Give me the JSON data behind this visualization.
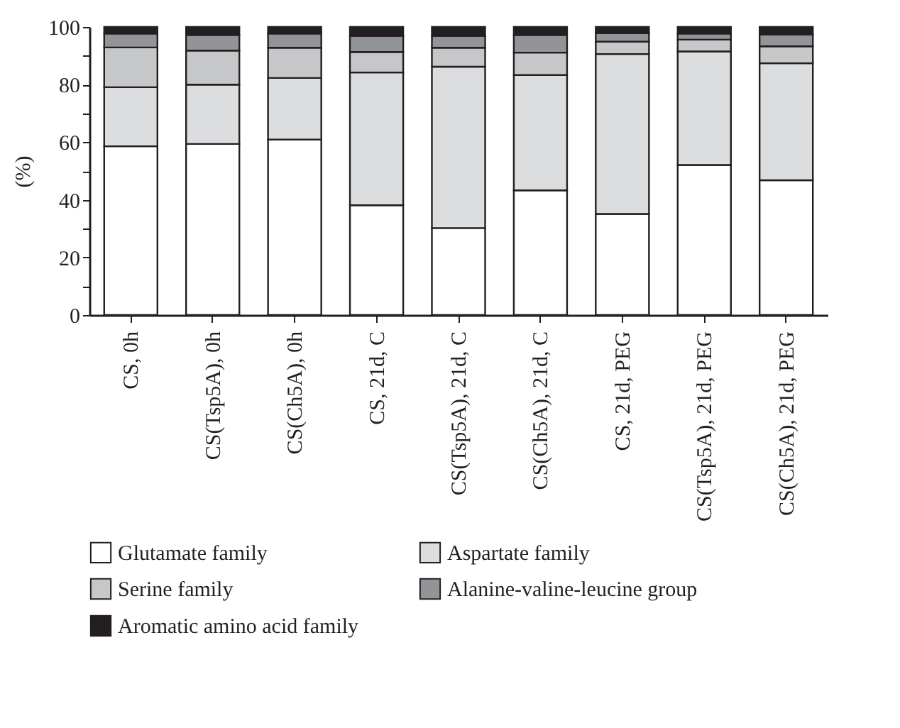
{
  "chart_data": {
    "type": "bar",
    "stacked": true,
    "ylabel": "(%)",
    "categories": [
      "CS, 0h",
      "CS(Tsp5A), 0h",
      "CS(Ch5A), 0h",
      "CS, 21d, C",
      "CS(Tsp5A), 21d, C",
      "CS(Ch5A), 21d, C",
      "CS, 21d, PEG",
      "CS(Tsp5A), 21d, PEG",
      "CS(Ch5A), 21d, PEG"
    ],
    "series": [
      {
        "name": "Glutamate family",
        "color": "#ffffff",
        "values": [
          58.6,
          59.4,
          60.9,
          38.1,
          30.2,
          43.3,
          35.1,
          52.1,
          46.8
        ]
      },
      {
        "name": "Aspartate family",
        "color": "#dcdddf",
        "values": [
          20.5,
          20.6,
          21.4,
          46.1,
          56.0,
          40.0,
          55.5,
          39.4,
          40.6
        ]
      },
      {
        "name": "Serine family",
        "color": "#c6c7c9",
        "values": [
          13.8,
          11.8,
          10.5,
          7.1,
          6.6,
          7.8,
          4.3,
          4.1,
          5.9
        ]
      },
      {
        "name": "Alanine-valine-leucine group",
        "color": "#929497",
        "values": [
          4.8,
          5.4,
          4.9,
          5.6,
          4.1,
          6.1,
          3.0,
          2.1,
          4.1
        ]
      },
      {
        "name": "Aromatic amino acid family",
        "color": "#231f20",
        "values": [
          2.3,
          2.8,
          2.3,
          3.1,
          3.1,
          2.8,
          2.1,
          2.3,
          2.6
        ]
      }
    ],
    "ylim": [
      0,
      100
    ],
    "yticks": [
      0,
      {
        "value": 10,
        "label": null
      },
      20,
      {
        "value": 30,
        "label": null
      },
      40,
      {
        "value": 50,
        "label": null
      },
      60,
      {
        "value": 70,
        "label": null
      },
      80,
      {
        "value": 90,
        "label": null
      },
      100
    ],
    "legend": "bottom",
    "grid": false
  }
}
